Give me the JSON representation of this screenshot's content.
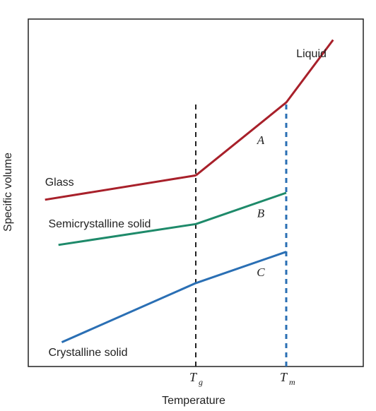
{
  "chart_data": {
    "type": "line",
    "title": "",
    "xlabel": "Temperature",
    "ylabel": "Specific volume",
    "xlim": [
      0,
      100
    ],
    "ylim": [
      0,
      100
    ],
    "x_ticks": [
      {
        "base": "T",
        "sub": "g",
        "x": 50
      },
      {
        "base": "T",
        "sub": "m",
        "x": 77
      }
    ],
    "series": [
      {
        "name": "Glass",
        "color": "#a8202a",
        "points": [
          [
            5,
            48
          ],
          [
            50,
            55
          ]
        ]
      },
      {
        "name": "Liquid",
        "color": "#a8202a",
        "points": [
          [
            50,
            55
          ],
          [
            77,
            76
          ],
          [
            91,
            94
          ]
        ]
      },
      {
        "name": "Semicrystalline solid",
        "color": "#1e8a6a",
        "points": [
          [
            9,
            35
          ],
          [
            50,
            41
          ],
          [
            77,
            50
          ]
        ]
      },
      {
        "name": "Crystalline solid",
        "color": "#2a6fb4",
        "points": [
          [
            10,
            7
          ],
          [
            50,
            24
          ],
          [
            77,
            33
          ]
        ]
      }
    ],
    "reference_lines": [
      {
        "x": 50,
        "color": "#222222",
        "style": "dashed"
      },
      {
        "x": 77,
        "color": "#2a6fb4",
        "style": "dashed"
      }
    ],
    "series_labels": [
      {
        "text": "Liquid",
        "x": 80,
        "y": 89
      },
      {
        "text": "Glass",
        "x": 5,
        "y": 52
      },
      {
        "text": "Semicrystalline solid",
        "x": 6,
        "y": 40
      },
      {
        "text": "Crystalline solid",
        "x": 6,
        "y": 3
      }
    ],
    "annotations": [
      {
        "text": "A",
        "x": 77,
        "y": 64
      },
      {
        "text": "B",
        "x": 77,
        "y": 43
      },
      {
        "text": "C",
        "x": 77,
        "y": 26
      }
    ],
    "grid": false,
    "legend": "none"
  }
}
